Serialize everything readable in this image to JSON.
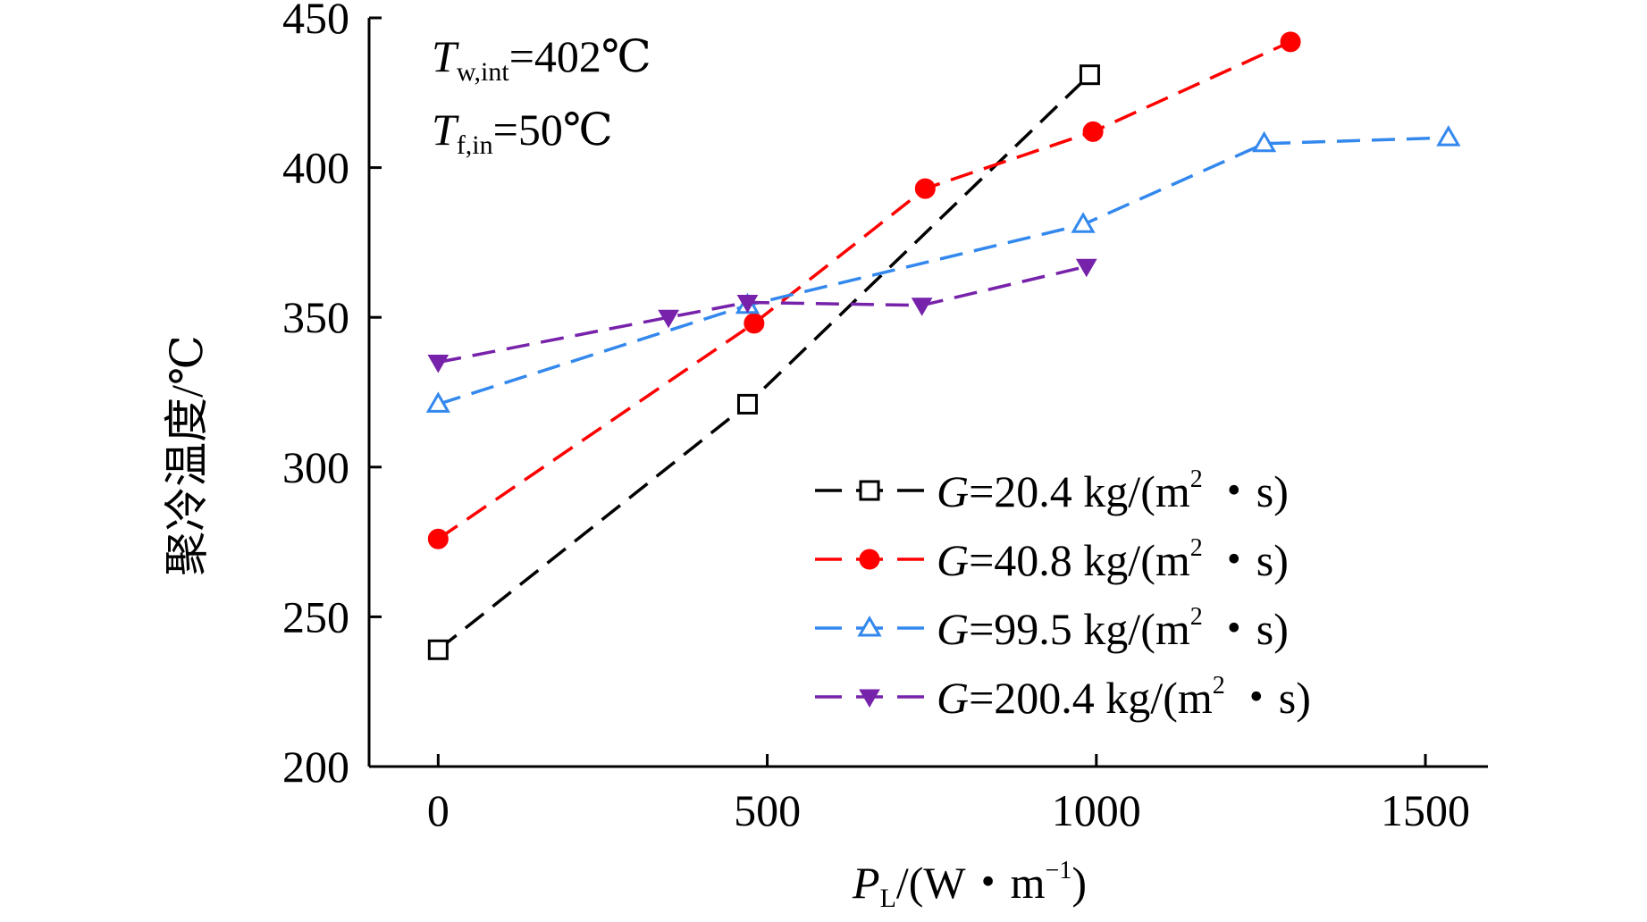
{
  "chart_data": {
    "type": "line",
    "xlabel": {
      "var": "P",
      "sub": "L",
      "unit_pre": "/(W・m",
      "unit_sup": "−1",
      "unit_post": ")"
    },
    "ylabel": "聚冷温度/℃",
    "xlim": [
      -105,
      1595
    ],
    "ylim": [
      200,
      450
    ],
    "xticks": [
      0,
      500,
      1000,
      1500
    ],
    "yticks": [
      200,
      250,
      300,
      350,
      400,
      450
    ],
    "grid": false,
    "legend_position": "lower-right",
    "annotations": [
      {
        "var": "T",
        "sub": "w,int",
        "text": "=402℃"
      },
      {
        "var": "T",
        "sub": "f,in",
        "text": "=50℃"
      }
    ],
    "series": [
      {
        "name": "G=20.4 kg/(m2・s)",
        "legend": {
          "var": "G",
          "pre": "=20.4 kg/(m",
          "sup": "2",
          "post": "・s)"
        },
        "color": "#000000",
        "marker": "square-open",
        "x": [
          0,
          470,
          990
        ],
        "y": [
          239,
          321,
          431
        ]
      },
      {
        "name": "G=40.8 kg/(m2・s)",
        "legend": {
          "var": "G",
          "pre": "=40.8 kg/(m",
          "sup": "2",
          "post": "・s)"
        },
        "color": "#ff0000",
        "marker": "circle-filled",
        "x": [
          0,
          480,
          740,
          995,
          1295
        ],
        "y": [
          276,
          348,
          393,
          412,
          442
        ]
      },
      {
        "name": "G=99.5 kg/(m2・s)",
        "legend": {
          "var": "G",
          "pre": "=99.5 kg/(m",
          "sup": "2",
          "post": "・s)"
        },
        "color": "#3388ee",
        "marker": "triangle-up-open",
        "x": [
          0,
          470,
          980,
          1255,
          1535
        ],
        "y": [
          321,
          354,
          381,
          408,
          410
        ]
      },
      {
        "name": "G=200.4 kg/(m2・s)",
        "legend": {
          "var": "G",
          "pre": "=200.4 kg/(m",
          "sup": "2",
          "post": "・s)"
        },
        "color": "#7722aa",
        "marker": "triangle-down-filled",
        "x": [
          0,
          350,
          470,
          735,
          985
        ],
        "y": [
          335,
          350,
          355,
          354,
          367
        ]
      }
    ]
  }
}
